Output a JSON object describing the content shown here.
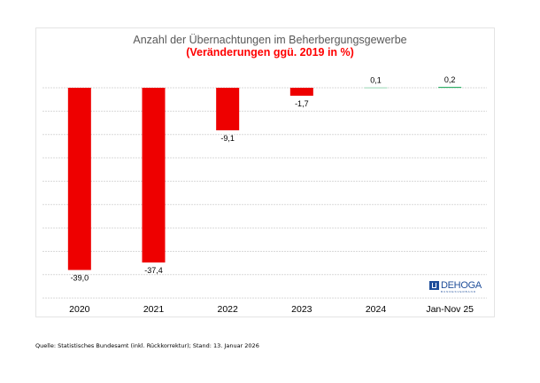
{
  "chart_data": {
    "type": "bar",
    "title": "Anzahl der Übernachtungen im Beherbergungsgewerbe",
    "subtitle": "(Veränderungen ggü. 2019 in %)",
    "categories": [
      "2020",
      "2021",
      "2022",
      "2023",
      "2024",
      "Jan-Nov 25"
    ],
    "values": [
      -39.0,
      -37.4,
      -9.1,
      -1.7,
      0.1,
      0.2
    ],
    "data_labels": [
      "-39,0",
      "-37,4",
      "-9,1",
      "-1,7",
      "0,1",
      "0,2"
    ],
    "xlabel": "",
    "ylabel": "",
    "ylim": [
      -45,
      0
    ],
    "grid_step": 5,
    "grid": true,
    "legend": "none",
    "colors": {
      "negative": "#ee0000",
      "positive": "#33b06a",
      "positive_light": "#a8dcc0",
      "gridline": "#d9d9d9"
    }
  },
  "source": "Quelle: Statistisches Bundesamt (inkl. Rückkorrektur); Stand: 13. Januar 2026",
  "logo": {
    "name": "DEHOGA",
    "sub": "BUNDESVERBAND"
  }
}
